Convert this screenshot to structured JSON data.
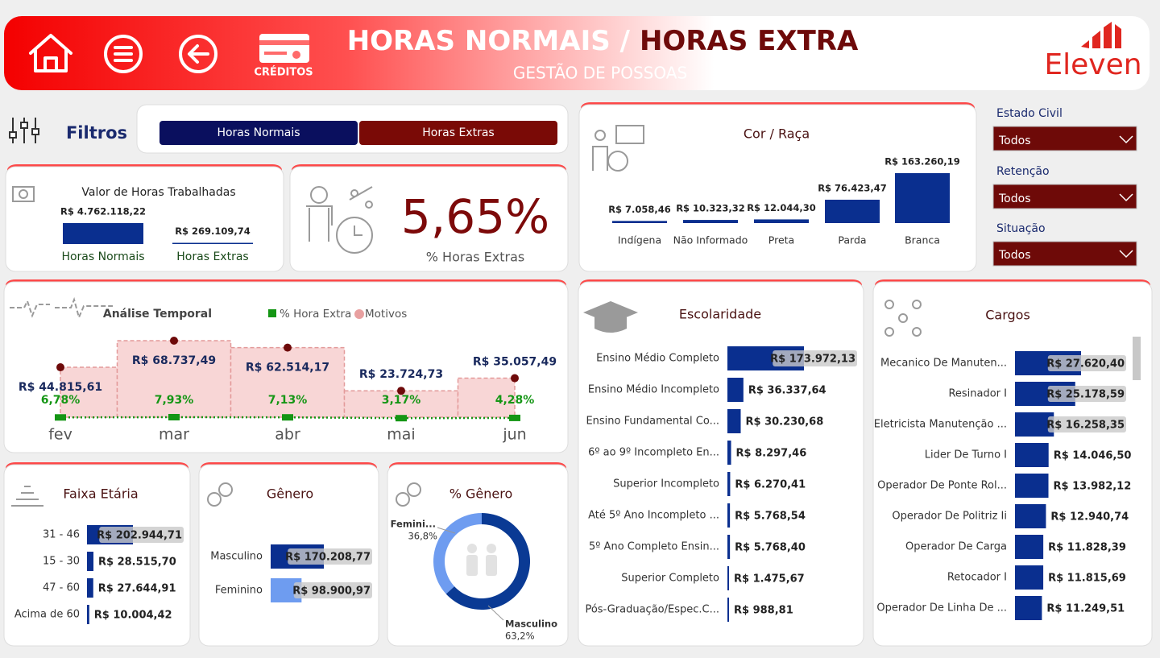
{
  "header": {
    "title_part1": "HORAS NORMAIS /",
    "title_part2": "HORAS EXTRA",
    "subtitle": "GESTÃO DE POSSOAS",
    "credits": "CRÉDITOS",
    "logo": "Eleven"
  },
  "filters": {
    "title": "Filtros",
    "buttons": [
      "Horas Normais",
      "Horas Extras"
    ]
  },
  "slicers": [
    {
      "label": "Estado Civil",
      "value": "Todos"
    },
    {
      "label": "Retenção",
      "value": "Todos"
    },
    {
      "label": "Situação",
      "value": "Todos"
    }
  ],
  "chart_data": [
    {
      "type": "bar",
      "title": "Valor de Horas Trabalhadas",
      "categories": [
        "Horas Normais",
        "Horas Extras"
      ],
      "values": [
        4762118.22,
        269109.74
      ],
      "value_labels": [
        "R$ 4.762.118,22",
        "R$ 269.109,74"
      ],
      "color": "#0a2f8f"
    },
    {
      "type": "kpi",
      "categories": [
        "% Horas Extras"
      ],
      "values": [
        5.65
      ],
      "value_labels": [
        "5,65%"
      ],
      "color": "#7d0a0a"
    },
    {
      "type": "bar",
      "title": "Cor / Raça",
      "categories": [
        "Indígena",
        "Não Informado",
        "Preta",
        "Parda",
        "Branca"
      ],
      "values": [
        7058.46,
        10323.32,
        12044.3,
        76423.47,
        163260.19
      ],
      "value_labels": [
        "R$ 7.058,46",
        "R$ 10.323,32",
        "R$ 12.044,30",
        "R$ 76.423,47",
        "R$ 163.260,19"
      ],
      "color": "#0a2f8f"
    },
    {
      "type": "line",
      "title": "Análise Temporal",
      "categories": [
        "fev",
        "mar",
        "abr",
        "mai",
        "jun"
      ],
      "series": [
        {
          "name": "% Hora Extra",
          "color": "#159615",
          "values": [
            6.78,
            7.93,
            7.13,
            3.17,
            4.28
          ],
          "value_labels": [
            "6,78%",
            "7,93%",
            "7,13%",
            "3,17%",
            "4,28%"
          ]
        },
        {
          "name": "Motivos",
          "color": "#e8a0a0",
          "values": [
            44815.61,
            68737.49,
            62514.17,
            23724.73,
            35057.49
          ],
          "value_labels": [
            "R$ 44.815,61",
            "R$ 68.737,49",
            "R$ 62.514,17",
            "R$ 23.724,73",
            "R$ 35.057,49"
          ]
        }
      ]
    },
    {
      "type": "hbar",
      "title": "Escolaridade",
      "categories": [
        "Ensino Médio Completo",
        "Ensino Médio Incompleto",
        "Ensino Fundamental Co...",
        "6º ao 9º Incompleto En...",
        "Superior Incompleto",
        "Até 5º Ano Incompleto ...",
        "5º Ano Completo Ensin...",
        "Superior Completo",
        "Pós-Graduação/Espec.C..."
      ],
      "values": [
        173972.13,
        36337.64,
        30230.68,
        8297.46,
        6270.41,
        5768.54,
        5768.4,
        1475.67,
        988.81
      ],
      "value_labels": [
        "R$ 173.972,13",
        "R$ 36.337,64",
        "R$ 30.230,68",
        "R$ 8.297,46",
        "R$ 6.270,41",
        "R$ 5.768,54",
        "R$ 5.768,40",
        "R$ 1.475,67",
        "R$ 988,81"
      ],
      "color": "#0a2f8f"
    },
    {
      "type": "hbar",
      "title": "Cargos",
      "categories": [
        "Mecanico De Manuten...",
        "Resinador I",
        "Eletricista Manutenção ...",
        "Lider De Turno I",
        "Operador De Ponte Rol...",
        "Operador De Politriz Ii",
        "Operador De Carga",
        "Retocador I",
        "Operador De Linha De ..."
      ],
      "values": [
        27620.4,
        25178.59,
        16258.35,
        14046.5,
        13982.12,
        12940.74,
        11828.39,
        11815.69,
        11249.51
      ],
      "value_labels": [
        "R$ 27.620,40",
        "R$ 25.178,59",
        "R$ 16.258,35",
        "R$ 14.046,50",
        "R$ 13.982,12",
        "R$ 12.940,74",
        "R$ 11.828,39",
        "R$ 11.815,69",
        "R$ 11.249,51"
      ],
      "color": "#0a2f8f"
    },
    {
      "type": "hbar",
      "title": "Faixa Etária",
      "categories": [
        "31 - 46",
        "15 - 30",
        "47 - 60",
        "Acima de 60"
      ],
      "values": [
        202944.71,
        28515.7,
        27644.91,
        10004.42
      ],
      "value_labels": [
        "R$ 202.944,71",
        "R$ 28.515,70",
        "R$ 27.644,91",
        "R$ 10.004,42"
      ],
      "color": "#0a2f8f"
    },
    {
      "type": "hbar",
      "title": "Gênero",
      "categories": [
        "Masculino",
        "Feminino"
      ],
      "values": [
        170208.77,
        98900.97
      ],
      "value_labels": [
        "R$ 170.208,77",
        "R$ 98.900,97"
      ],
      "colors": [
        "#0a2f8f",
        "#6e9cf0"
      ]
    },
    {
      "type": "donut",
      "title": "% Gênero",
      "categories": [
        "Femini...",
        "Masculino"
      ],
      "values": [
        36.8,
        63.2
      ],
      "value_labels": [
        "36,8%",
        "63,2%"
      ],
      "colors": [
        "#6e9cf0",
        "#0a3a94"
      ]
    }
  ]
}
